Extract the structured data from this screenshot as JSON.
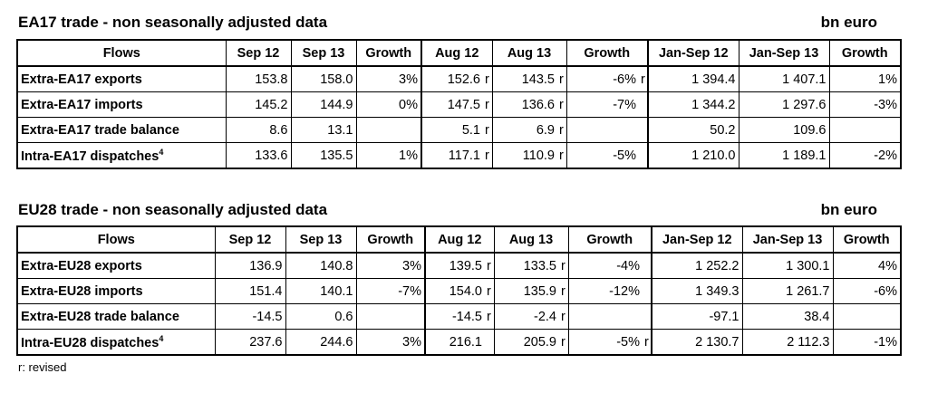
{
  "ea17": {
    "title": "EA17 trade - non seasonally adjusted data",
    "unit": "bn euro",
    "headers": [
      "Flows",
      "Sep 12",
      "Sep 13",
      "Growth",
      "Aug 12",
      "Aug 13",
      "Growth",
      "Jan-Sep 12",
      "Jan-Sep 13",
      "Growth"
    ],
    "rows": [
      {
        "label": "Extra-EA17 exports",
        "sup": "",
        "sep12": "153.8",
        "sep13": "158.0",
        "g1": "3%",
        "aug12": "152.6",
        "f1": "r",
        "aug13": "143.5",
        "f2": "r",
        "g2": "-6%",
        "f3": "r",
        "jan12": "1 394.4",
        "jan13": "1 407.1",
        "g3": "1%"
      },
      {
        "label": "Extra-EA17 imports",
        "sup": "",
        "sep12": "145.2",
        "sep13": "144.9",
        "g1": "0%",
        "aug12": "147.5",
        "f1": "r",
        "aug13": "136.6",
        "f2": "r",
        "g2": "-7%",
        "f3": "",
        "jan12": "1 344.2",
        "jan13": "1 297.6",
        "g3": "-3%"
      },
      {
        "label": "Extra-EA17 trade balance",
        "sup": "",
        "sep12": "8.6",
        "sep13": "13.1",
        "g1": "",
        "aug12": "5.1",
        "f1": "r",
        "aug13": "6.9",
        "f2": "r",
        "g2": "",
        "f3": "",
        "jan12": "50.2",
        "jan13": "109.6",
        "g3": ""
      },
      {
        "label": "Intra-EA17 dispatches",
        "sup": "4",
        "sep12": "133.6",
        "sep13": "135.5",
        "g1": "1%",
        "aug12": "117.1",
        "f1": "r",
        "aug13": "110.9",
        "f2": "r",
        "g2": "-5%",
        "f3": "",
        "jan12": "1 210.0",
        "jan13": "1 189.1",
        "g3": "-2%"
      }
    ]
  },
  "eu28": {
    "title": "EU28 trade - non seasonally adjusted data",
    "unit": "bn euro",
    "headers": [
      "Flows",
      "Sep 12",
      "Sep 13",
      "Growth",
      "Aug 12",
      "Aug 13",
      "Growth",
      "Jan-Sep 12",
      "Jan-Sep 13",
      "Growth"
    ],
    "rows": [
      {
        "label": "Extra-EU28 exports",
        "sup": "",
        "sep12": "136.9",
        "sep13": "140.8",
        "g1": "3%",
        "aug12": "139.5",
        "f1": "r",
        "aug13": "133.5",
        "f2": "r",
        "g2": "-4%",
        "f3": "",
        "jan12": "1 252.2",
        "jan13": "1 300.1",
        "g3": "4%"
      },
      {
        "label": "Extra-EU28 imports",
        "sup": "",
        "sep12": "151.4",
        "sep13": "140.1",
        "g1": "-7%",
        "aug12": "154.0",
        "f1": "r",
        "aug13": "135.9",
        "f2": "r",
        "g2": "-12%",
        "f3": "",
        "jan12": "1 349.3",
        "jan13": "1 261.7",
        "g3": "-6%"
      },
      {
        "label": "Extra-EU28 trade balance",
        "sup": "",
        "sep12": "-14.5",
        "sep13": "0.6",
        "g1": "",
        "aug12": "-14.5",
        "f1": "r",
        "aug13": "-2.4",
        "f2": "r",
        "g2": "",
        "f3": "",
        "jan12": "-97.1",
        "jan13": "38.4",
        "g3": ""
      },
      {
        "label": "Intra-EU28 dispatches",
        "sup": "4",
        "sep12": "237.6",
        "sep13": "244.6",
        "g1": "3%",
        "aug12": "216.1",
        "f1": "",
        "aug13": "205.9",
        "f2": "r",
        "g2": "-5%",
        "f3": "r",
        "jan12": "2 130.7",
        "jan13": "2 112.3",
        "g3": "-1%"
      }
    ]
  },
  "footnote": "r: revised"
}
